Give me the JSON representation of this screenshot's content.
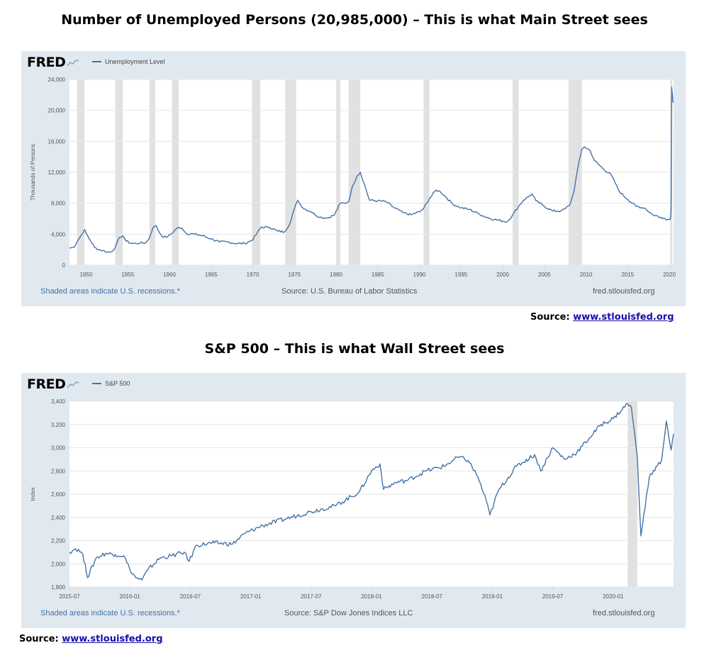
{
  "top_heading": "Number of Unemployed Persons (20,985,000) – This is what Main Street sees",
  "bottom_heading": "S&P 500 – This is what Wall Street sees",
  "logo": "FRED",
  "source_prefix": "Source:",
  "source_link": "www.stlouisfed.org",
  "chart_data": [
    {
      "type": "line",
      "series": [
        {
          "name": "Unemployment Level"
        }
      ],
      "ylabel": "Thousands of Persons",
      "ylim": [
        0,
        24000
      ],
      "yticks": [
        0,
        4000,
        8000,
        12000,
        16000,
        20000,
        24000
      ],
      "ytick_labels": [
        "0",
        "4,000",
        "8,000",
        "12,000",
        "16,000",
        "20,000",
        "24,000"
      ],
      "xlim": [
        1948,
        2020.5
      ],
      "xticks": [
        1950,
        1955,
        1960,
        1965,
        1970,
        1975,
        1980,
        1985,
        1990,
        1995,
        2000,
        2005,
        2010,
        2015,
        2020
      ],
      "xtick_labels": [
        "1950",
        "1955",
        "1960",
        "1965",
        "1970",
        "1975",
        "1980",
        "1985",
        "1990",
        "1995",
        "2000",
        "2005",
        "2010",
        "2015",
        "2020"
      ],
      "recessions": [
        [
          1948.9,
          1949.8
        ],
        [
          1953.5,
          1954.4
        ],
        [
          1957.6,
          1958.3
        ],
        [
          1960.3,
          1961.1
        ],
        [
          1969.9,
          1970.9
        ],
        [
          1973.9,
          1975.2
        ],
        [
          1980.0,
          1980.5
        ],
        [
          1981.5,
          1982.9
        ],
        [
          1990.5,
          1991.2
        ],
        [
          2001.2,
          2001.9
        ],
        [
          2007.9,
          2009.5
        ],
        [
          2020.1,
          2020.35
        ]
      ],
      "x": [
        1948.0,
        1948.5,
        1949.0,
        1949.5,
        1949.8,
        1950.0,
        1950.5,
        1951.0,
        1951.5,
        1952.0,
        1952.5,
        1953.0,
        1953.5,
        1954.0,
        1954.4,
        1954.8,
        1955.5,
        1956.0,
        1956.5,
        1957.0,
        1957.5,
        1958.0,
        1958.4,
        1958.8,
        1959.3,
        1959.8,
        1960.3,
        1960.9,
        1961.5,
        1962.0,
        1963.0,
        1964.0,
        1965.0,
        1966.0,
        1967.0,
        1968.0,
        1969.0,
        1969.9,
        1970.5,
        1971.0,
        1972.0,
        1973.0,
        1973.8,
        1974.5,
        1975.0,
        1975.4,
        1976.0,
        1977.0,
        1978.0,
        1979.0,
        1979.8,
        1980.5,
        1981.0,
        1981.5,
        1982.0,
        1982.5,
        1982.9,
        1983.5,
        1984.0,
        1985.0,
        1986.0,
        1987.0,
        1988.0,
        1989.0,
        1990.0,
        1990.5,
        1991.2,
        1992.0,
        1992.5,
        1993.0,
        1994.0,
        1995.0,
        1996.0,
        1997.0,
        1998.0,
        1999.0,
        2000.0,
        2000.5,
        2001.2,
        2001.9,
        2002.5,
        2003.0,
        2003.5,
        2004.0,
        2005.0,
        2006.0,
        2007.0,
        2007.5,
        2008.0,
        2008.5,
        2009.0,
        2009.5,
        2009.8,
        2010.5,
        2011.0,
        2012.0,
        2013.0,
        2014.0,
        2015.0,
        2016.0,
        2017.0,
        2018.0,
        2019.0,
        2019.8,
        2020.1,
        2020.2,
        2020.28,
        2020.36,
        2020.45
      ],
      "y": [
        2200,
        2300,
        3200,
        4000,
        4600,
        4100,
        3200,
        2300,
        2000,
        1900,
        1700,
        1700,
        2300,
        3600,
        3800,
        3100,
        2800,
        2800,
        2900,
        2800,
        3300,
        4800,
        5100,
        4200,
        3600,
        3700,
        4100,
        4800,
        4800,
        4100,
        4000,
        3800,
        3400,
        3000,
        3000,
        2800,
        2800,
        3200,
        4100,
        4900,
        4900,
        4400,
        4300,
        5500,
        7300,
        8400,
        7400,
        6900,
        6200,
        6100,
        6500,
        8000,
        8000,
        8200,
        10300,
        11500,
        12000,
        10100,
        8400,
        8300,
        8200,
        7400,
        6800,
        6500,
        6900,
        7300,
        8600,
        9700,
        9500,
        9000,
        7900,
        7400,
        7200,
        6700,
        6200,
        5900,
        5700,
        5600,
        6500,
        7600,
        8400,
        8800,
        9200,
        8300,
        7600,
        7000,
        7000,
        7300,
        7700,
        9300,
        12500,
        15000,
        15300,
        14800,
        13500,
        12500,
        11700,
        9500,
        8500,
        7600,
        7400,
        6500,
        6200,
        5900,
        5900,
        7100,
        23000,
        22000,
        20985
      ]
    },
    {
      "type": "line",
      "series": [
        {
          "name": "S&P 500"
        }
      ],
      "ylabel": "Index",
      "ylim": [
        1800,
        3400
      ],
      "yticks": [
        1800,
        2000,
        2200,
        2400,
        2600,
        2800,
        3000,
        3200,
        3400
      ],
      "ytick_labels": [
        "1,800",
        "2,000",
        "2,200",
        "2,400",
        "2,600",
        "2,800",
        "3,000",
        "3,200",
        "3,400"
      ],
      "xlim": [
        2015.5,
        2020.5
      ],
      "xticks": [
        2015.5,
        2016.0,
        2016.5,
        2017.0,
        2017.5,
        2018.0,
        2018.5,
        2019.0,
        2019.5,
        2020.0
      ],
      "xtick_labels": [
        "2015-07",
        "2016-01",
        "2016-07",
        "2017-01",
        "2017-07",
        "2018-01",
        "2018-07",
        "2019-01",
        "2019-07",
        "2020-01"
      ],
      "recessions": [
        [
          2020.12,
          2020.2
        ]
      ],
      "x": [
        2015.5,
        2015.55,
        2015.6,
        2015.63,
        2015.65,
        2015.72,
        2015.8,
        2015.88,
        2015.95,
        2016.0,
        2016.05,
        2016.1,
        2016.15,
        2016.25,
        2016.35,
        2016.45,
        2016.49,
        2016.55,
        2016.7,
        2016.85,
        2016.95,
        2017.1,
        2017.3,
        2017.5,
        2017.7,
        2017.9,
        2018.0,
        2018.07,
        2018.1,
        2018.2,
        2018.3,
        2018.45,
        2018.6,
        2018.72,
        2018.8,
        2018.88,
        2018.95,
        2018.98,
        2019.05,
        2019.2,
        2019.35,
        2019.4,
        2019.5,
        2019.6,
        2019.7,
        2019.8,
        2019.9,
        2020.0,
        2020.12,
        2020.15,
        2020.2,
        2020.23,
        2020.3,
        2020.4,
        2020.44,
        2020.48,
        2020.5
      ],
      "y": [
        2100,
        2130,
        2100,
        2000,
        1880,
        2050,
        2090,
        2080,
        2070,
        1950,
        1880,
        1860,
        1950,
        2050,
        2070,
        2100,
        2020,
        2160,
        2180,
        2170,
        2260,
        2330,
        2390,
        2450,
        2500,
        2620,
        2800,
        2860,
        2640,
        2700,
        2720,
        2800,
        2840,
        2920,
        2890,
        2750,
        2540,
        2420,
        2630,
        2840,
        2940,
        2800,
        3000,
        2900,
        2960,
        3080,
        3200,
        3250,
        3380,
        3350,
        2920,
        2240,
        2750,
        2890,
        3230,
        2980,
        3120
      ]
    }
  ],
  "panels": [
    {
      "note": "Shaded areas indicate U.S. recessions.*",
      "source": "Source: U.S. Bureau of Labor Statistics",
      "site": "fred.stlouisfed.org"
    },
    {
      "note": "Shaded areas indicate U.S. recessions.*",
      "source": "Source: S&P Dow Jones Indices LLC",
      "site": "fred.stlouisfed.org"
    }
  ]
}
